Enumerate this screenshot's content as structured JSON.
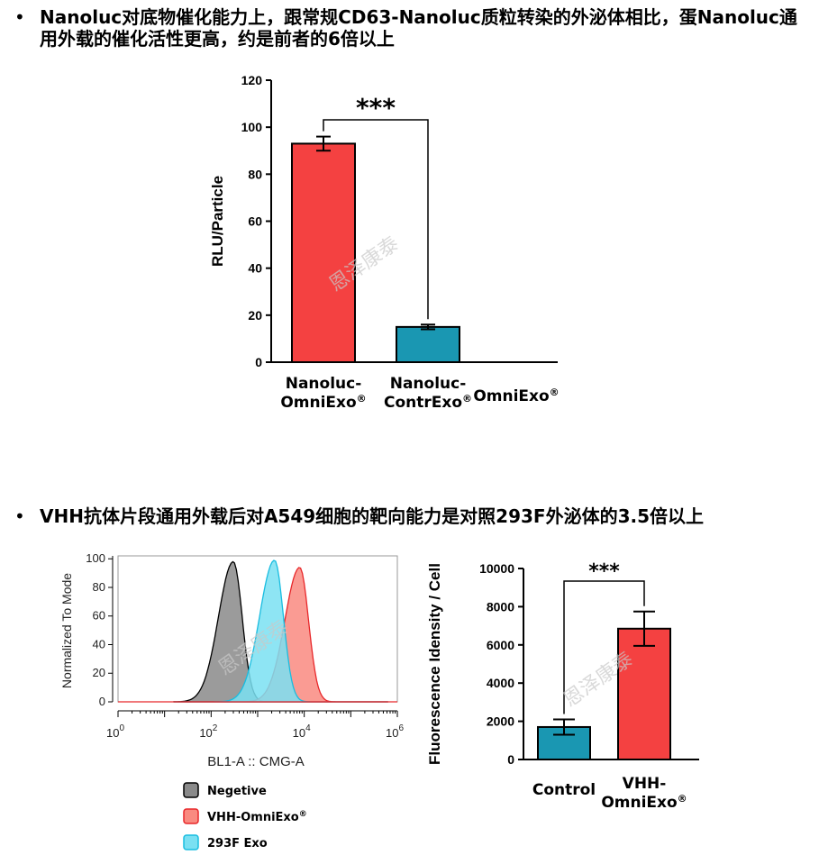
{
  "bullets": [
    {
      "dot": "•",
      "text": "Nanoluc对底物催化能力上，跟常规CD63-Nanoluc质粒转染的外泌体相比，蛋Nanoluc通用外载的催化活性更高，约是前者的6倍以上"
    },
    {
      "dot": "•",
      "text": "VHH抗体片段通用外载后对A549细胞的靶向能力是对照293F外泌体的3.5倍以上"
    }
  ],
  "watermark": "恩泽康泰",
  "chart_data": [
    {
      "type": "bar",
      "ylabel": "RLU/Particle",
      "ylim": [
        0,
        120
      ],
      "yticks": [
        0,
        20,
        40,
        60,
        80,
        100,
        120
      ],
      "categories": [
        [
          "Nanoluc-",
          "OmniExo®"
        ],
        [
          "Nanoluc-",
          "ContrExo®"
        ],
        [
          "OmniExo®"
        ]
      ],
      "values": [
        93,
        15,
        0
      ],
      "errors": [
        3,
        1,
        0
      ],
      "colors": [
        "#f44141",
        "#1a97b2",
        "#ffffff"
      ],
      "significance": {
        "label": "***",
        "from": 0,
        "to": 1
      }
    },
    {
      "type": "area",
      "ylabel": "Normalized To Mode",
      "xlabel": "BL1-A :: CMG-A",
      "xscale": "log",
      "xlim": [
        1,
        1000000
      ],
      "ylim": [
        0,
        100
      ],
      "yticks": [
        0,
        20,
        40,
        60,
        80,
        100
      ],
      "xticks": [
        {
          "base": "10",
          "exp": "0"
        },
        {
          "base": "10",
          "exp": "2"
        },
        {
          "base": "10",
          "exp": "4"
        },
        {
          "base": "10",
          "exp": "6"
        }
      ],
      "series": [
        {
          "name": "Negetive",
          "peak": 300,
          "height": 98,
          "color": "#8a8a8a",
          "stroke": "#000000"
        },
        {
          "name": "VHH-OmniExo®",
          "peak": 8000,
          "height": 94,
          "color": "#f98a80",
          "stroke": "#e8272a"
        },
        {
          "name": "293F Exo",
          "peak": 2300,
          "height": 99,
          "color": "#7ae0f2",
          "stroke": "#19bde0"
        }
      ]
    },
    {
      "type": "bar",
      "ylabel": "Fluorescence Idensity / Cell",
      "ylim": [
        0,
        10000
      ],
      "yticks": [
        0,
        2000,
        4000,
        6000,
        8000,
        10000
      ],
      "categories": [
        [
          "Control"
        ],
        [
          "VHH-",
          "OmniExo®"
        ]
      ],
      "values": [
        1700,
        6850
      ],
      "errors": [
        400,
        900
      ],
      "colors": [
        "#1a97b2",
        "#f44141"
      ],
      "significance": {
        "label": "***",
        "from": 0,
        "to": 1
      }
    }
  ]
}
